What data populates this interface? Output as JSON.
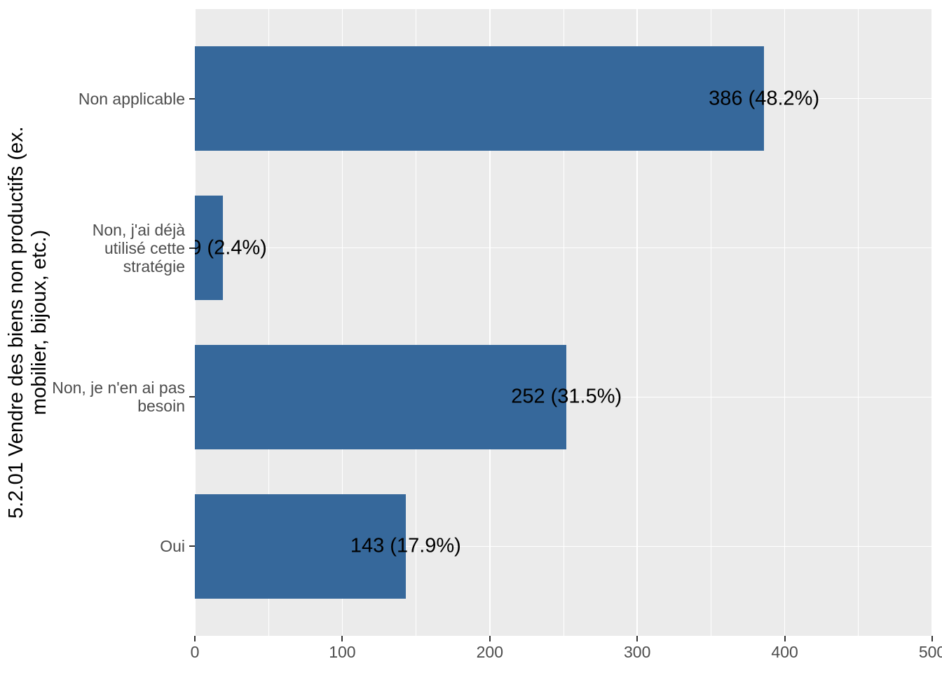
{
  "chart_data": {
    "type": "bar",
    "orientation": "horizontal",
    "ylabel": "5.2.01 Vendre des biens non productifs (ex.\nmobilier, bijoux, etc.)",
    "xlabel": "",
    "categories": [
      "Non applicable",
      "Non, j'ai déjà\nutilisé cette\nstratégie",
      "Non, je n'en ai pas\nbesoin",
      "Oui"
    ],
    "values": [
      386,
      19,
      252,
      143
    ],
    "percentages": [
      48.2,
      2.4,
      31.5,
      17.9
    ],
    "bar_labels": [
      "386 (48.2%)",
      "19 (2.4%)",
      "252 (31.5%)",
      "143 (17.9%)"
    ],
    "xlim": [
      0,
      500
    ],
    "x_major_ticks": [
      0,
      100,
      200,
      300,
      400,
      500
    ],
    "x_minor_ticks": [
      50,
      150,
      250,
      350,
      450
    ],
    "grid": true,
    "legend": false,
    "colors": {
      "bar": "#36689B",
      "panel_bg": "#EBEBEB",
      "plot_bg": "#FFFFFF",
      "grid": "#FFFFFF",
      "axis_text": "#4D4D4D",
      "tick": "#333333",
      "label": "#000000"
    }
  }
}
